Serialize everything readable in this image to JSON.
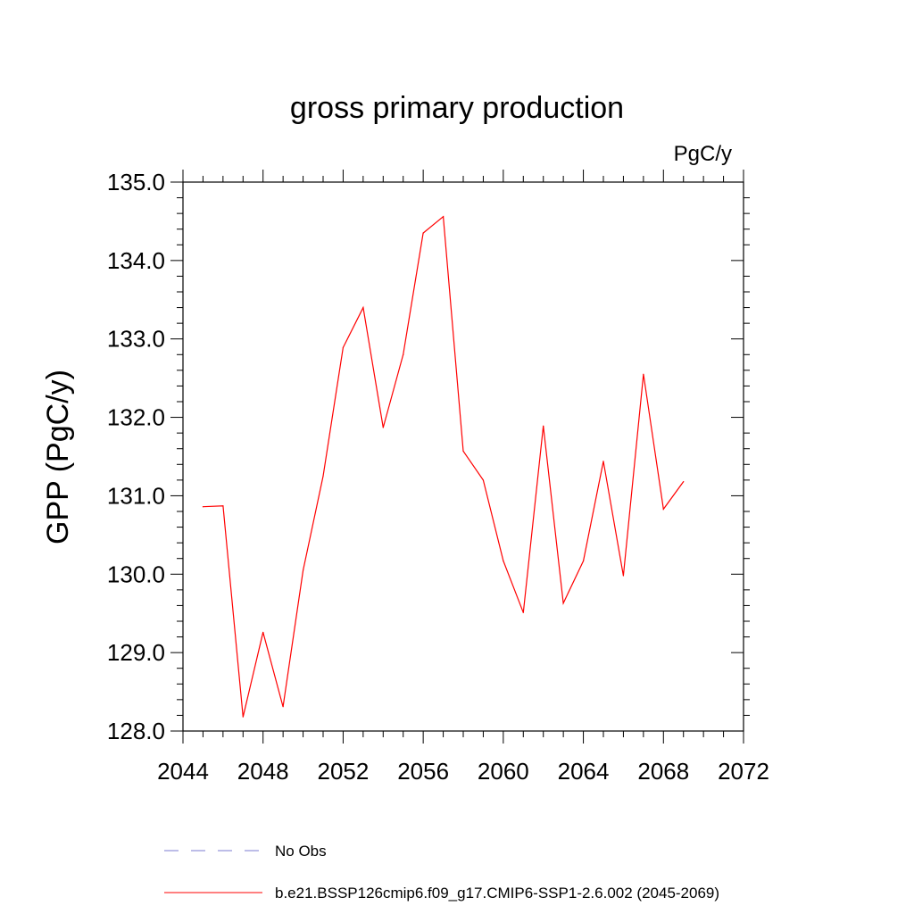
{
  "chart_data": {
    "type": "line",
    "title": "gross primary production",
    "units_label": "PgC/y",
    "ylabel": "GPP  (PgC/y)",
    "xlabel": "",
    "xlim": [
      2044,
      2072
    ],
    "ylim": [
      128.0,
      135.0
    ],
    "x_ticks": [
      2044,
      2048,
      2052,
      2056,
      2060,
      2064,
      2068,
      2072
    ],
    "x_tick_labels": [
      "2044",
      "2048",
      "2052",
      "2056",
      "2060",
      "2064",
      "2068",
      "2072"
    ],
    "y_ticks": [
      128.0,
      129.0,
      130.0,
      131.0,
      132.0,
      133.0,
      134.0,
      135.0
    ],
    "y_tick_labels": [
      "128.0",
      "129.0",
      "130.0",
      "131.0",
      "132.0",
      "133.0",
      "134.0",
      "135.0"
    ],
    "grid": false,
    "legend_position": "bottom",
    "series": [
      {
        "name": "b.e21.BSSP126cmip6.f09_g17.CMIP6-SSP1-2.6.002 (2045-2069)",
        "color": "#ff0000",
        "x": [
          2045,
          2046,
          2047,
          2048,
          2049,
          2050,
          2051,
          2052,
          2053,
          2054,
          2055,
          2056,
          2057,
          2058,
          2059,
          2060,
          2061,
          2062,
          2063,
          2064,
          2065,
          2066,
          2067,
          2068,
          2069
        ],
        "values": [
          130.86,
          130.87,
          128.18,
          129.26,
          128.31,
          130.05,
          131.25,
          132.89,
          133.4,
          131.87,
          132.8,
          134.35,
          134.56,
          131.57,
          131.2,
          130.17,
          129.51,
          131.89,
          129.63,
          130.17,
          131.44,
          129.98,
          132.55,
          130.83,
          131.18
        ]
      }
    ],
    "legend": [
      {
        "label": "No Obs",
        "color": "#7b7bd0",
        "style": "dashed"
      },
      {
        "label": "b.e21.BSSP126cmip6.f09_g17.CMIP6-SSP1-2.6.002 (2045-2069)",
        "color": "#ff0000",
        "style": "solid"
      }
    ]
  }
}
